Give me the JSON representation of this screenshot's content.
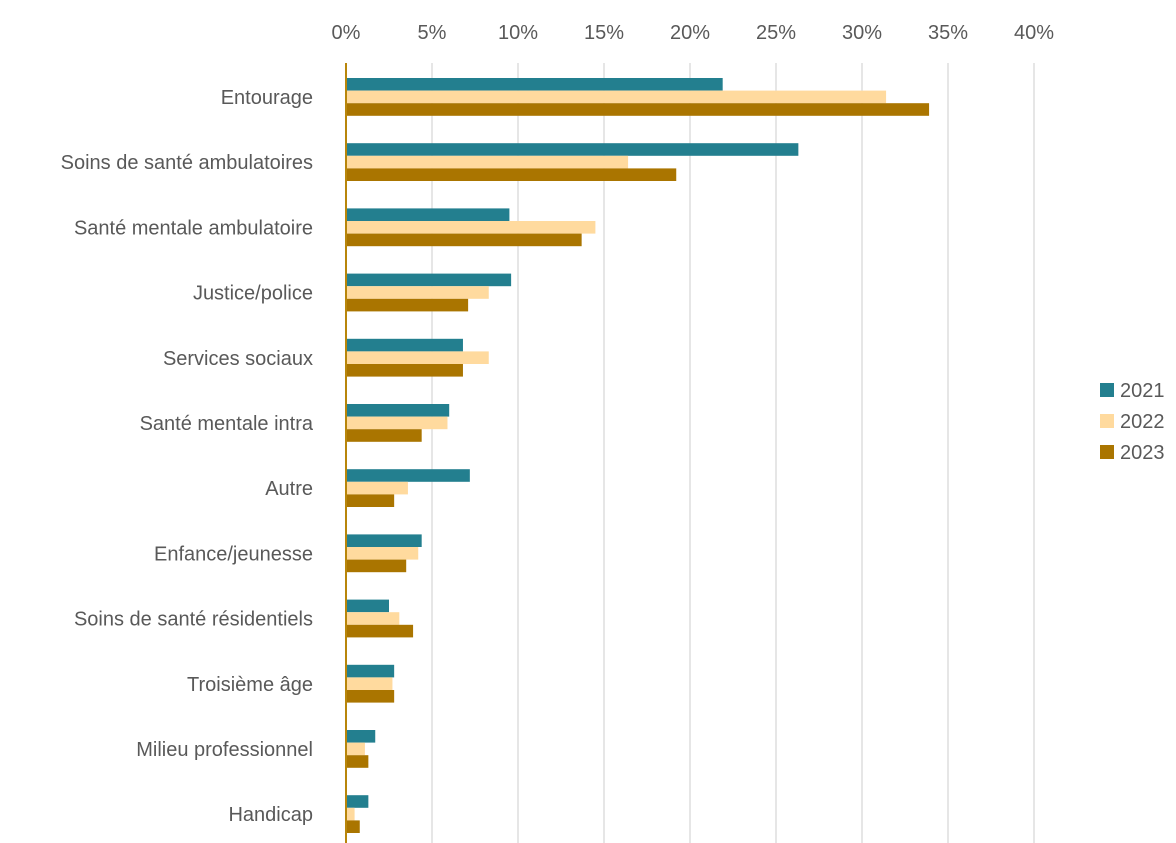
{
  "chart_data": {
    "type": "bar",
    "orientation": "horizontal",
    "categories": [
      "Entourage",
      "Soins de santé ambulatoires",
      "Santé mentale ambulatoire",
      "Justice/police",
      "Services sociaux",
      "Santé mentale intra",
      "Autre",
      "Enfance/jeunesse",
      "Soins de santé résidentiels",
      "Troisième âge",
      "Milieu professionnel",
      "Handicap"
    ],
    "series": [
      {
        "name": "2021",
        "color": "#237F8F",
        "values": [
          21.9,
          26.3,
          9.5,
          9.6,
          6.8,
          6.0,
          7.2,
          4.4,
          2.5,
          2.8,
          1.7,
          1.3
        ]
      },
      {
        "name": "2022",
        "color": "#FFDA9E",
        "values": [
          31.4,
          16.4,
          14.5,
          8.3,
          8.3,
          5.9,
          3.6,
          4.2,
          3.1,
          2.7,
          1.1,
          0.5
        ]
      },
      {
        "name": "2023",
        "color": "#AA7500",
        "values": [
          33.9,
          19.2,
          13.7,
          7.1,
          6.8,
          4.4,
          2.8,
          3.5,
          3.9,
          2.8,
          1.3,
          0.8
        ]
      }
    ],
    "xlim": [
      0,
      40
    ],
    "xticks": [
      "0%",
      "5%",
      "10%",
      "15%",
      "20%",
      "25%",
      "30%",
      "35%",
      "40%"
    ],
    "grid": true,
    "legend_position": "right",
    "title": "",
    "xlabel": "",
    "ylabel": ""
  }
}
